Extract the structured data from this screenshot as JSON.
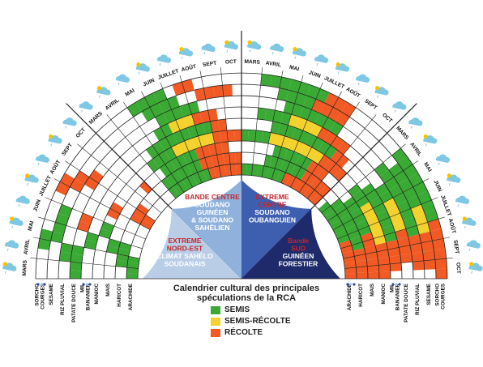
{
  "title_line1": "Calendrier cultural des principales",
  "title_line2": "spéculations de la RCA",
  "legend": [
    {
      "label": "SEMIS",
      "color": "#3aaa35"
    },
    {
      "label": "SEMIS-RÉCOLTE",
      "color": "#f4d22d"
    },
    {
      "label": "RÉCOLTE",
      "color": "#f15a24"
    }
  ],
  "zones": [
    {
      "name": "zone-extreme-nord-est",
      "lines": [
        "EXTREME",
        "NORD-EST",
        "CLIMAT SAHÉLO",
        "SOUDANAIS"
      ],
      "colors": [
        "#c1272d",
        "#c1272d",
        "#ffffff",
        "#ffffff"
      ],
      "fill": "#b9cde6"
    },
    {
      "name": "zone-bande-centre",
      "lines": [
        "BANDE CENTRE",
        "SOUDANO",
        "GUINÉEN",
        "& SOUDANO",
        "SAHÉLIEN"
      ],
      "colors": [
        "#c1272d",
        "#ffffff",
        "#ffffff",
        "#ffffff",
        "#ffffff"
      ],
      "fill": "#8fb1dc"
    },
    {
      "name": "zone-extreme-centre",
      "lines": [
        "EXTREME",
        "CENTRE",
        "SOUDANO",
        "OUBANGUIEN"
      ],
      "colors": [
        "#c1272d",
        "#c1272d",
        "#ffffff",
        "#ffffff"
      ],
      "fill": "#3e5fb0"
    },
    {
      "name": "zone-bande-sud",
      "lines": [
        "Bande",
        "SUD",
        "GUINÉEN",
        "FORESTIER"
      ],
      "colors": [
        "#c1272d",
        "#c1272d",
        "#ffffff",
        "#ffffff"
      ],
      "fill": "#1f2a6b"
    }
  ],
  "months": {
    "left": [
      "MARS",
      "AVRIL",
      "MAI",
      "JUIN",
      "JUILLET",
      "AOÛT",
      "SEPT",
      "OCT"
    ],
    "right": [
      "MARS",
      "AVRIL",
      "MAI",
      "JUIN",
      "JUILLET",
      "AOÛT",
      "SEPT",
      "OCT"
    ]
  },
  "crops_left": [
    "SORCHO\nCOURGES",
    "SESAME",
    "RIZ PLUVIAL",
    "PATATE DOUCE",
    "MIL\nBANANIER",
    "MANIOC",
    "MAIS",
    "HARICOT",
    "ARACHIDE"
  ],
  "crops_right": [
    "ARACHIDE",
    "HARICOT",
    "MAIS",
    "MANIOC",
    "MIL\nBANANIER",
    "PATATE DOUCE",
    "RIZ PLUVIAL",
    "SESAME",
    "SORCHO\nCOURGES"
  ],
  "colors": {
    "semis": "#3aaa35",
    "mixed": "#f4d22d",
    "recolte": "#f15a24",
    "grid": "#222222",
    "weather": "#7ec8e3"
  },
  "grids": {
    "q1": [
      "SSSS......RR....",
      "..SSSS....RRR...",
      "....SS.........R",
      "......SS.RR.....",
      "....SS..........",
      "SSSS..RR........",
      "..SS.......RR...",
      "....SSSS..RR....",
      "...SS....RR....."
    ],
    "q2": [
      "..SSSSSSSSRRRRRR",
      "..SSSSSSSRRRRRRR",
      "...SSSSSSRRRRR..",
      "..SSSSYYYYYYRRRR",
      "...SSSSSSSSSRR..",
      ".....SSYYYRRR...",
      "......SSSSS.....",
      ".....SSSS..RRRR.",
      "....SSSS.RR....."
    ],
    "q3": [
      "SSSSSSSSRRRRRRRR",
      "....SSSSSSSRRRRR",
      ".....SSSSSSRRR..",
      "SSSSYYYYYYYYRRRR",
      "....SSSSSSSSSRR.",
      "..SSSSYYYYRRRR..",
      ".....SSSSSSS....",
      "....SSSSRRRR....",
      "..SSSSSSSRRR...."
    ],
    "q4": [
      ".SSSSSSSSRRRRRRR",
      "..SSSSSSSSSRRRRR",
      "...SSSSSSRRRRRRR",
      "..SSSYYYYYYRRRRR",
      "...SSSSSSSSRRRR.",
      "....SSYYYYRRRR..",
      "..SSSSSSSSSRRRR.",
      "...SSSSSYYYRRRR.",
      "..SSSSSSSSRRRRRR"
    ]
  }
}
